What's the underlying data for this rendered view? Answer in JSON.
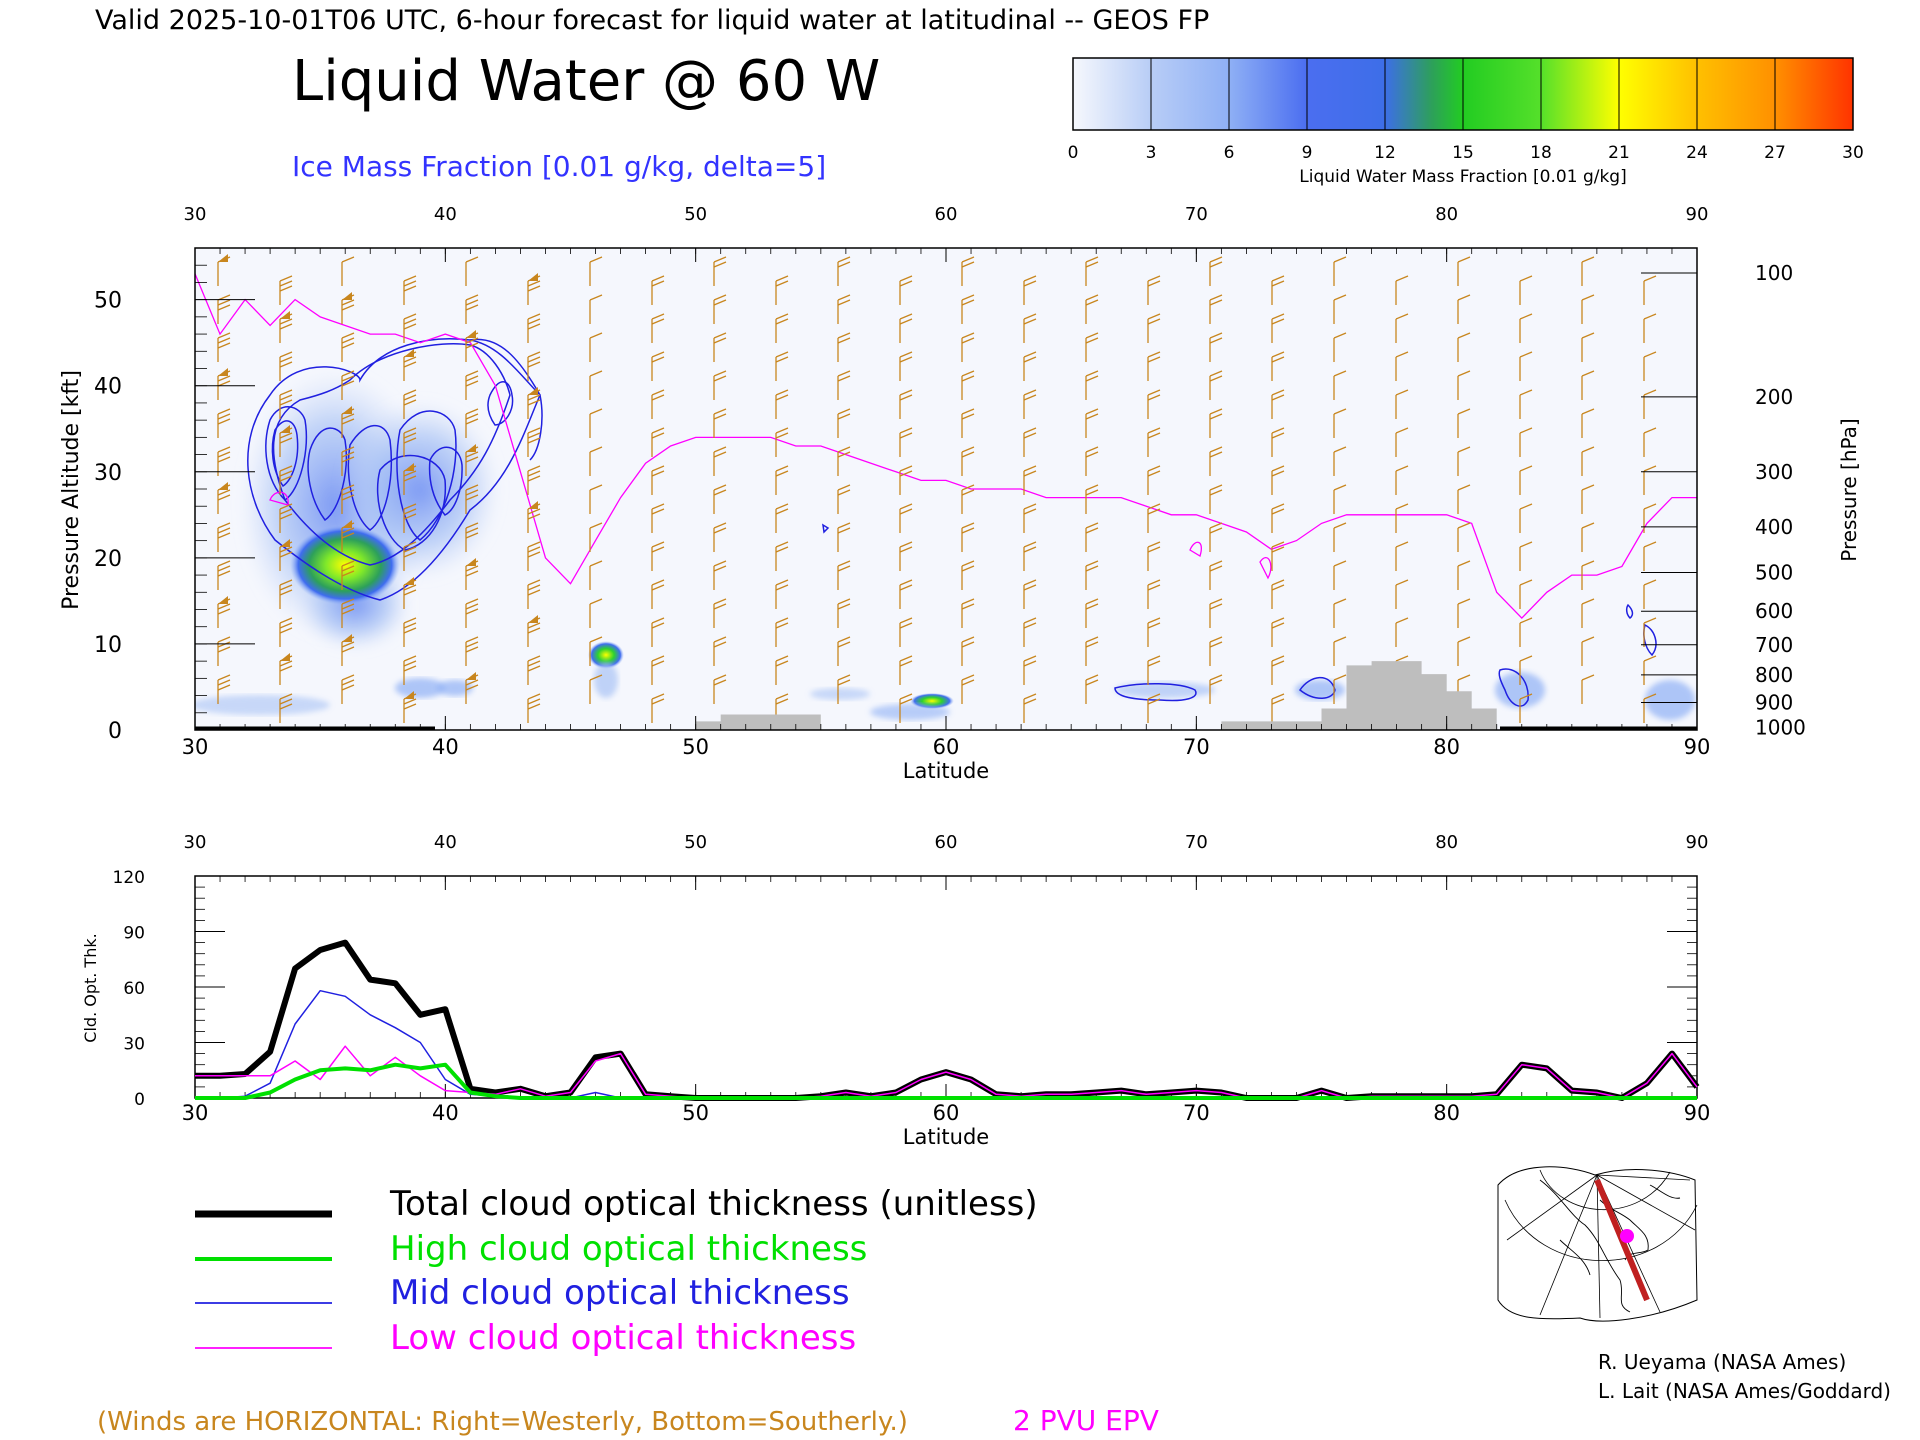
{
  "header": {
    "valid_line": "Valid 2025-10-01T06 UTC, 6-hour forecast for liquid water at latitudinal -- GEOS FP",
    "title": "Liquid Water @ 60 W",
    "subtitle": "Ice Mass Fraction [0.01 g/kg, delta=5]"
  },
  "colorbar": {
    "label": "Liquid Water Mass Fraction [0.01 g/kg]",
    "ticks": [
      "0",
      "3",
      "6",
      "9",
      "12",
      "15",
      "18",
      "21",
      "24",
      "27",
      "30"
    ],
    "colors": [
      "#f2f4fb",
      "#a9c3f5",
      "#8fb0f5",
      "#5a7ff2",
      "#3f6cf0",
      "#2da05a",
      "#2ed22e",
      "#7fe82a",
      "#ffff00",
      "#ffc000",
      "#ff4000"
    ]
  },
  "colors": {
    "ice_contour": "#2020e0",
    "epv": "#ff00ff",
    "wind": "#c8861e",
    "terrain": "#bebebe",
    "total": "#000000",
    "high": "#00e000",
    "mid": "#2020e0",
    "low": "#ff00ff"
  },
  "chart_data": [
    {
      "type": "heatmap",
      "xlabel": "Latitude",
      "ylabel": "Pressure Altitude [kft]",
      "ylabel_right": "Pressure [hPa]",
      "xlim": [
        30,
        90
      ],
      "ylim": [
        0,
        56
      ],
      "x_ticks": [
        "30",
        "40",
        "50",
        "60",
        "70",
        "80",
        "90"
      ],
      "y_ticks": [
        "0",
        "10",
        "20",
        "30",
        "40",
        "50"
      ],
      "pressure_ticks": [
        "100",
        "200",
        "300",
        "400",
        "500",
        "600",
        "700",
        "800",
        "900",
        "1000"
      ],
      "pressure_tick_kft": [
        53.1,
        38.7,
        30.0,
        23.6,
        18.3,
        13.8,
        9.9,
        6.4,
        3.2,
        0.3
      ],
      "series": [
        {
          "name": "2 PVU EPV",
          "x": [
            30,
            31,
            32,
            33,
            34,
            35,
            36,
            37,
            38,
            39,
            40,
            41,
            42,
            43,
            44,
            45,
            46,
            47,
            48,
            49,
            50,
            51,
            52,
            53,
            54,
            55,
            56,
            57,
            58,
            59,
            60,
            61,
            62,
            63,
            64,
            65,
            66,
            67,
            68,
            69,
            70,
            71,
            72,
            73,
            74,
            75,
            76,
            77,
            78,
            79,
            80,
            81,
            82,
            83,
            84,
            85,
            86,
            87,
            88,
            89,
            90
          ],
          "y": [
            53,
            46,
            50,
            47,
            50,
            48,
            47,
            46,
            46,
            45,
            46,
            45,
            40,
            30,
            20,
            17,
            22,
            27,
            31,
            33,
            34,
            34,
            34,
            34,
            33,
            33,
            32,
            31,
            30,
            29,
            29,
            28,
            28,
            28,
            27,
            27,
            27,
            27,
            26,
            25,
            25,
            24,
            23,
            21,
            22,
            24,
            25,
            25,
            25,
            25,
            25,
            24,
            16,
            13,
            16,
            18,
            18,
            19,
            24,
            27,
            27
          ]
        }
      ],
      "terrain": {
        "x": [
          50,
          51,
          52,
          53,
          54,
          55,
          71,
          72,
          73,
          74,
          75,
          76,
          77,
          78,
          79,
          80,
          81,
          82
        ],
        "y": [
          1,
          1.8,
          1.8,
          1.8,
          1.8,
          0,
          1,
          1,
          1,
          1,
          2.5,
          7.5,
          8,
          8,
          6.5,
          4.5,
          2.5,
          0
        ]
      }
    },
    {
      "type": "line",
      "xlabel": "Latitude",
      "ylabel": "Cld. Opt. Thk.",
      "xlim": [
        30,
        90
      ],
      "ylim": [
        0,
        120
      ],
      "x_ticks": [
        "30",
        "40",
        "50",
        "60",
        "70",
        "80",
        "90"
      ],
      "y_ticks": [
        "0",
        "30",
        "60",
        "90",
        "120"
      ],
      "x": [
        30,
        31,
        32,
        33,
        34,
        35,
        36,
        37,
        38,
        39,
        40,
        41,
        42,
        43,
        44,
        45,
        46,
        47,
        48,
        49,
        50,
        51,
        52,
        53,
        54,
        55,
        56,
        57,
        58,
        59,
        60,
        61,
        62,
        63,
        64,
        65,
        66,
        67,
        68,
        69,
        70,
        71,
        72,
        73,
        74,
        75,
        76,
        77,
        78,
        79,
        80,
        81,
        82,
        83,
        84,
        85,
        86,
        87,
        88,
        89,
        90
      ],
      "series": [
        {
          "name": "Total cloud optical thickness (unitless)",
          "values": [
            12,
            12,
            13,
            25,
            70,
            80,
            84,
            64,
            62,
            45,
            48,
            5,
            3,
            5,
            1,
            3,
            22,
            24,
            2,
            1,
            0,
            0,
            0,
            0,
            0,
            1,
            3,
            1,
            3,
            10,
            14,
            10,
            2,
            1,
            2,
            2,
            3,
            4,
            2,
            3,
            4,
            3,
            0,
            0,
            0,
            4,
            0,
            1,
            1,
            1,
            1,
            1,
            2,
            18,
            16,
            4,
            3,
            0,
            8,
            24,
            6
          ]
        },
        {
          "name": "High cloud optical thickness",
          "values": [
            0,
            0,
            0,
            3,
            10,
            15,
            16,
            15,
            18,
            16,
            18,
            3,
            1,
            0,
            0,
            0,
            0,
            0,
            0,
            0,
            0,
            0,
            0,
            0,
            0,
            0,
            0,
            0,
            0,
            0,
            0,
            0,
            0,
            0,
            0,
            0,
            0,
            0,
            0,
            0,
            0,
            0,
            0,
            0,
            0,
            0,
            0,
            0,
            0,
            0,
            0,
            0,
            0,
            0,
            0,
            0,
            0,
            0,
            0,
            0,
            0
          ]
        },
        {
          "name": "Mid cloud optical thickness",
          "values": [
            0,
            0,
            1,
            8,
            40,
            58,
            55,
            45,
            38,
            30,
            10,
            2,
            1,
            0,
            0,
            0,
            3,
            0,
            0,
            0,
            0,
            0,
            0,
            0,
            0,
            0,
            0,
            0,
            0,
            0,
            0,
            0,
            0,
            0,
            0,
            0,
            0,
            0,
            0,
            0,
            0,
            0,
            0,
            0,
            0,
            0,
            0,
            0,
            0,
            0,
            0,
            0,
            0,
            0,
            0,
            0,
            0,
            0,
            0,
            0,
            0
          ]
        },
        {
          "name": "Low cloud optical thickness",
          "values": [
            12,
            12,
            12,
            12,
            20,
            10,
            28,
            12,
            22,
            12,
            4,
            3,
            2,
            5,
            1,
            3,
            20,
            24,
            2,
            1,
            0,
            0,
            0,
            0,
            0,
            1,
            3,
            1,
            3,
            10,
            14,
            10,
            2,
            1,
            2,
            2,
            3,
            4,
            2,
            3,
            4,
            3,
            0,
            0,
            0,
            4,
            0,
            1,
            1,
            1,
            1,
            1,
            2,
            18,
            16,
            4,
            3,
            0,
            8,
            24,
            6
          ]
        }
      ]
    }
  ],
  "legend": {
    "total": "Total cloud optical thickness (unitless)",
    "high": "High cloud optical thickness",
    "mid": "Mid cloud optical thickness",
    "low": "Low cloud optical thickness"
  },
  "footer": {
    "winds_note": "(Winds are HORIZONTAL: Right=Westerly, Bottom=Southerly.)",
    "epv_label": "2 PVU EPV",
    "credit_1": "R. Ueyama (NASA Ames)",
    "credit_2": "L. Lait (NASA Ames/Goddard)"
  }
}
